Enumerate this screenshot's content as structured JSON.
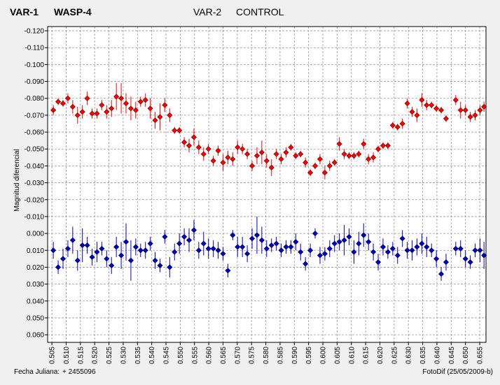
{
  "chart_data": {
    "type": "scatter",
    "x_label": "Fecha Juliana:",
    "x_offset": "+ 2455096",
    "y_label": "Magnitud diferencial",
    "footer": "FotoDif (25/05/2009-b)",
    "y_inverted": true,
    "grid": true,
    "xlim": [
      0.5035,
      0.6572
    ],
    "xticks": [
      0.505,
      {
        "value": 0.51,
        "label": "0.510"
      },
      0.515,
      {
        "value": 0.52,
        "label": "0.520"
      },
      0.525,
      {
        "value": 0.53,
        "label": "0.530"
      },
      0.535,
      {
        "value": 0.54,
        "label": "0.540"
      },
      0.545,
      {
        "value": 0.55,
        "label": "0.550"
      },
      0.555,
      {
        "value": 0.56,
        "label": "0.560"
      },
      0.565,
      {
        "value": 0.57,
        "label": "0.570"
      },
      0.575,
      {
        "value": 0.58,
        "label": "0.580"
      },
      0.585,
      {
        "value": 0.59,
        "label": "0.590"
      },
      0.595,
      {
        "value": 0.6,
        "label": "0.600"
      },
      0.605,
      {
        "value": 0.61,
        "label": "0.610"
      },
      0.615,
      {
        "value": 0.62,
        "label": "0.620"
      },
      0.625,
      {
        "value": 0.63,
        "label": "0.630"
      },
      0.635,
      {
        "value": 0.64,
        "label": "0.640"
      },
      0.645,
      {
        "value": 0.65,
        "label": "0.650"
      },
      0.655
    ],
    "ylim": [
      -0.1225,
      0.0645
    ],
    "yticks": [
      {
        "value": -0.12,
        "label": "-0.120"
      },
      {
        "value": -0.11,
        "label": "-0.110"
      },
      {
        "value": -0.1,
        "label": "-0.100"
      },
      {
        "value": -0.09,
        "label": "-0.090"
      },
      {
        "value": -0.08,
        "label": "-0.080"
      },
      {
        "value": -0.07,
        "label": "-0.070"
      },
      {
        "value": -0.06,
        "label": "-0.060"
      },
      {
        "value": -0.05,
        "label": "-0.050"
      },
      {
        "value": -0.04,
        "label": "-0.040"
      },
      {
        "value": -0.03,
        "label": "-0.030"
      },
      {
        "value": -0.02,
        "label": "-0.020"
      },
      {
        "value": -0.01,
        "label": "-0.010"
      },
      {
        "value": 0,
        "label": "0.000"
      },
      {
        "value": 0.01,
        "label": "0.010"
      },
      {
        "value": 0.02,
        "label": "0.020"
      },
      {
        "value": 0.03,
        "label": "0.030"
      },
      {
        "value": 0.04,
        "label": "0.040"
      },
      {
        "value": 0.05,
        "label": "0.050"
      },
      {
        "value": 0.06,
        "label": "0.060"
      }
    ],
    "x": [
      0.5055,
      0.5072,
      0.5089,
      0.5106,
      0.5123,
      0.514,
      0.5157,
      0.5174,
      0.5191,
      0.5208,
      0.5225,
      0.5242,
      0.5259,
      0.5276,
      0.5293,
      0.531,
      0.5327,
      0.5344,
      0.5361,
      0.5378,
      0.5395,
      0.5412,
      0.5429,
      0.5446,
      0.5463,
      0.548,
      0.5497,
      0.5514,
      0.5531,
      0.5548,
      0.5565,
      0.5582,
      0.5599,
      0.5616,
      0.5633,
      0.565,
      0.5667,
      0.5684,
      0.5701,
      0.5718,
      0.5735,
      0.5752,
      0.5769,
      0.5786,
      0.5803,
      0.582,
      0.5837,
      0.5854,
      0.5871,
      0.5888,
      0.5905,
      0.5922,
      0.5939,
      0.5956,
      0.5973,
      0.599,
      0.6007,
      0.6024,
      0.6041,
      0.6058,
      0.6075,
      0.6092,
      0.6109,
      0.6126,
      0.6143,
      0.616,
      0.6177,
      0.6194,
      0.6211,
      0.6228,
      0.6245,
      0.6262,
      0.6279,
      0.6296,
      0.6313,
      0.633,
      0.6347,
      0.6364,
      0.6381,
      0.6398,
      0.6415,
      0.6432,
      0.6466,
      0.6483,
      0.65,
      0.6517,
      0.6534,
      0.6551,
      0.6565
    ],
    "series": [
      {
        "label": "VAR-1",
        "name": "WASP-4",
        "color": "#ff0000",
        "edge": "#800000",
        "values": [
          -0.073,
          -0.078,
          -0.077,
          -0.08,
          -0.075,
          -0.07,
          -0.072,
          -0.08,
          -0.071,
          -0.071,
          -0.076,
          -0.072,
          -0.074,
          -0.081,
          -0.08,
          -0.077,
          -0.074,
          -0.073,
          -0.078,
          -0.079,
          -0.074,
          -0.067,
          -0.069,
          -0.076,
          -0.07,
          -0.061,
          -0.061,
          -0.054,
          -0.052,
          -0.057,
          -0.051,
          -0.047,
          -0.05,
          -0.043,
          -0.049,
          -0.042,
          -0.045,
          -0.044,
          -0.051,
          -0.05,
          -0.047,
          -0.04,
          -0.046,
          -0.048,
          -0.043,
          -0.039,
          -0.047,
          -0.044,
          -0.048,
          -0.051,
          -0.046,
          -0.047,
          -0.042,
          -0.036,
          -0.04,
          -0.044,
          -0.036,
          -0.04,
          -0.042,
          -0.053,
          -0.047,
          -0.046,
          -0.046,
          -0.047,
          -0.053,
          -0.044,
          -0.045,
          -0.05,
          -0.052,
          -0.052,
          -0.064,
          -0.063,
          -0.065,
          -0.077,
          -0.072,
          -0.07,
          -0.079,
          -0.076,
          -0.076,
          -0.074,
          -0.073,
          -0.068,
          -0.079,
          -0.073,
          -0.073,
          -0.069,
          -0.07,
          -0.073,
          -0.075
        ],
        "errors": [
          0.003,
          0.002,
          0.002,
          0.003,
          0.004,
          0.005,
          0.004,
          0.004,
          0.003,
          0.003,
          0.003,
          0.004,
          0.005,
          0.008,
          0.009,
          0.006,
          0.007,
          0.005,
          0.003,
          0.004,
          0.006,
          0.005,
          0.008,
          0.004,
          0.004,
          0.002,
          0.002,
          0.003,
          0.004,
          0.005,
          0.004,
          0.004,
          0.003,
          0.003,
          0.003,
          0.005,
          0.004,
          0.004,
          0.004,
          0.003,
          0.003,
          0.003,
          0.005,
          0.007,
          0.004,
          0.005,
          0.003,
          0.003,
          0.003,
          0.002,
          0.002,
          0.002,
          0.003,
          0.002,
          0.002,
          0.003,
          0.004,
          0.003,
          0.002,
          0.004,
          0.003,
          0.002,
          0.002,
          0.002,
          0.003,
          0.003,
          0.003,
          0.002,
          0.002,
          0.002,
          0.002,
          0.002,
          0.003,
          0.003,
          0.003,
          0.004,
          0.004,
          0.003,
          0.002,
          0.002,
          0.002,
          0.002,
          0.003,
          0.005,
          0.003,
          0.003,
          0.003,
          0.003,
          0.003
        ]
      },
      {
        "label": "VAR-2",
        "name": "CONTROL",
        "color": "#0000c0",
        "edge": "#000060",
        "values": [
          0.01,
          0.02,
          0.015,
          0.009,
          0.004,
          0.016,
          0.007,
          0.007,
          0.014,
          0.011,
          0.009,
          0.015,
          0.019,
          0.008,
          0.013,
          0.005,
          0.016,
          0.008,
          0.01,
          0.01,
          0.006,
          0.016,
          0.019,
          0.002,
          0.02,
          0.011,
          0.006,
          0.002,
          0.004,
          -0.002,
          0.01,
          0.006,
          0.009,
          0.009,
          0.01,
          0.012,
          0.022,
          0.001,
          0.008,
          0.008,
          0.012,
          0.003,
          0.001,
          0.004,
          0.009,
          0.007,
          0.006,
          0.01,
          0.008,
          0.008,
          0.005,
          0.011,
          0.018,
          0.01,
          0,
          0.013,
          0.012,
          0.009,
          0.006,
          0.005,
          0.004,
          0.002,
          0.011,
          0.006,
          0.001,
          0.005,
          0.011,
          0.017,
          0.008,
          0.011,
          0.009,
          0.013,
          0.003,
          0.01,
          0.01,
          0.008,
          0.006,
          0.008,
          0.01,
          0.015,
          0.024,
          0.017,
          0.009,
          0.009,
          0.015,
          0.017,
          0.01,
          0.01,
          0.013
        ],
        "errors": [
          0.005,
          0.004,
          0.006,
          0.005,
          0.008,
          0.006,
          0.01,
          0.005,
          0.005,
          0.006,
          0.004,
          0.005,
          0.005,
          0.006,
          0.008,
          0.011,
          0.012,
          0.005,
          0.004,
          0.005,
          0.004,
          0.005,
          0.004,
          0.004,
          0.006,
          0.005,
          0.006,
          0.005,
          0.007,
          0.006,
          0.005,
          0.007,
          0.006,
          0.005,
          0.005,
          0.004,
          0.004,
          0.003,
          0.006,
          0.006,
          0.005,
          0.006,
          0.011,
          0.008,
          0.005,
          0.004,
          0.004,
          0.004,
          0.004,
          0.004,
          0.005,
          0.005,
          0.004,
          0.004,
          0.003,
          0.005,
          0.004,
          0.005,
          0.005,
          0.005,
          0.009,
          0.005,
          0.007,
          0.007,
          0.007,
          0.005,
          0.005,
          0.005,
          0.005,
          0.004,
          0.004,
          0.005,
          0.005,
          0.005,
          0.006,
          0.005,
          0.006,
          0.006,
          0.004,
          0.005,
          0.004,
          0.005,
          0.004,
          0.005,
          0.005,
          0.004,
          0.004,
          0.007,
          0.008
        ]
      }
    ]
  }
}
